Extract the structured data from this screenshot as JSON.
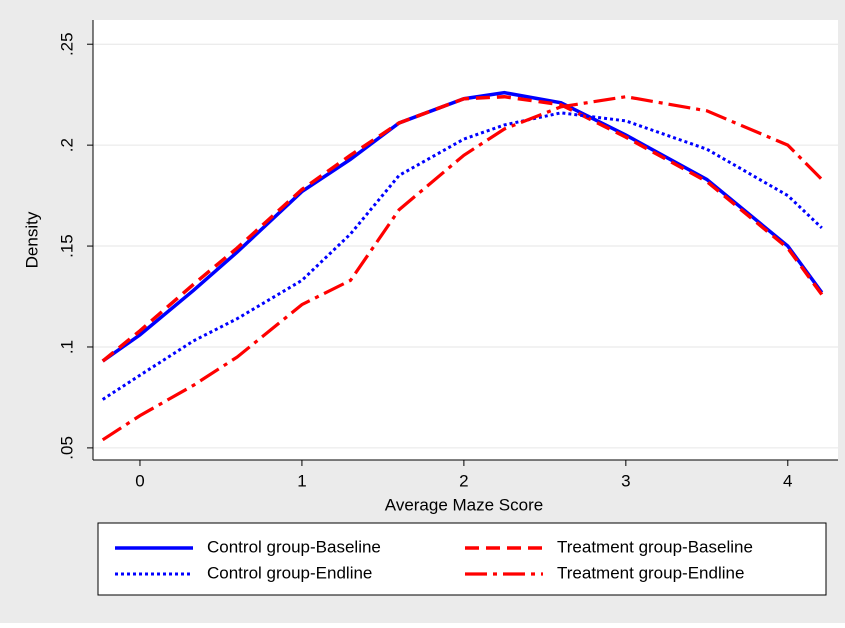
{
  "chart_data": {
    "type": "line",
    "x_label": "Average Maze Score",
    "y_label": "Density",
    "x": [
      -0.23,
      0,
      0.33,
      0.6,
      1,
      1.3,
      1.6,
      2,
      2.25,
      2.6,
      3,
      3.5,
      4,
      4.21
    ],
    "xlim": [
      -0.29,
      4.31
    ],
    "xticks": [
      0,
      1,
      2,
      3,
      4
    ],
    "ylim": [
      0.044,
      0.262
    ],
    "yticks": [
      {
        "value": 0.05,
        "label": ".05"
      },
      {
        "value": 0.1,
        "label": ".1"
      },
      {
        "value": 0.15,
        "label": ".15"
      },
      {
        "value": 0.2,
        "label": ".2"
      },
      {
        "value": 0.25,
        "label": ".25"
      }
    ],
    "grid": true,
    "series": [
      {
        "name": "Control group-Baseline",
        "color": "#0000ff",
        "dash": "solid",
        "values": [
          0.093,
          0.106,
          0.128,
          0.147,
          0.177,
          0.193,
          0.211,
          0.223,
          0.226,
          0.221,
          0.205,
          0.183,
          0.15,
          0.127
        ]
      },
      {
        "name": "Treatment group-Baseline",
        "color": "#ff0000",
        "dash": "dash",
        "values": [
          0.093,
          0.108,
          0.131,
          0.149,
          0.178,
          0.195,
          0.211,
          0.223,
          0.224,
          0.22,
          0.204,
          0.182,
          0.149,
          0.126
        ]
      },
      {
        "name": "Control group-Endline",
        "color": "#0000ff",
        "dash": "dot",
        "values": [
          0.074,
          0.086,
          0.103,
          0.114,
          0.133,
          0.156,
          0.185,
          0.203,
          0.21,
          0.216,
          0.212,
          0.198,
          0.175,
          0.159
        ]
      },
      {
        "name": "Treatment group-Endline",
        "color": "#ff0000",
        "dash": "dashdot",
        "values": [
          0.054,
          0.066,
          0.081,
          0.095,
          0.121,
          0.133,
          0.168,
          0.195,
          0.208,
          0.219,
          0.224,
          0.217,
          0.2,
          0.183
        ]
      }
    ]
  }
}
